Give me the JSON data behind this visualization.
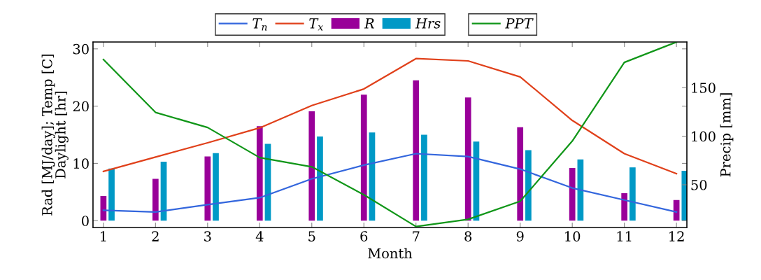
{
  "chart_data": {
    "type": "line",
    "xlabel": "Month",
    "ylabel": "Rad [MJ/day]; Temp [C]\nDaylight [hr]",
    "y2label": "Precip [mm]",
    "x": [
      1,
      2,
      3,
      4,
      5,
      6,
      7,
      8,
      9,
      10,
      11,
      12
    ],
    "xlim": [
      0.8,
      12.2
    ],
    "xticks": [
      1,
      2,
      3,
      4,
      5,
      6,
      7,
      8,
      9,
      10,
      11,
      12
    ],
    "ylim": [
      -1.2,
      31.2
    ],
    "yticks": [
      0,
      10,
      20,
      30
    ],
    "y2lim": [
      6,
      197
    ],
    "y2ticks": [
      50,
      100,
      150
    ],
    "grid": false,
    "legend": "top",
    "marker": "none",
    "line_style": "solid",
    "series": [
      {
        "name": "T$_{n}$",
        "color": "#3366dd",
        "values": [
          1.8,
          1.5,
          2.8,
          4.0,
          7.3,
          9.7,
          11.7,
          11.2,
          9.0,
          5.7,
          3.6,
          1.5
        ]
      },
      {
        "name": "T$_{x}$",
        "color": "#e0401a",
        "values": [
          8.6,
          11.1,
          13.6,
          16.2,
          20.1,
          23.0,
          28.3,
          27.9,
          25.1,
          17.5,
          11.7,
          8.2
        ]
      },
      {
        "name": "R",
        "type": "bar",
        "color": "#990099",
        "values": [
          4.3,
          7.3,
          11.2,
          16.5,
          19.1,
          22.0,
          24.5,
          21.5,
          16.3,
          9.2,
          4.8,
          3.6
        ]
      },
      {
        "name": "Hrs",
        "type": "bar",
        "color": "#0099c6",
        "values": [
          9.1,
          10.3,
          11.8,
          13.4,
          14.7,
          15.4,
          15.0,
          13.8,
          12.3,
          10.7,
          9.3,
          8.7
        ]
      },
      {
        "name": "PPT",
        "axis": "y2",
        "color": "#109618",
        "values": [
          179,
          124.5,
          109,
          78,
          68.5,
          39.7,
          7,
          14.4,
          33,
          95,
          176,
          197
        ]
      }
    ]
  }
}
